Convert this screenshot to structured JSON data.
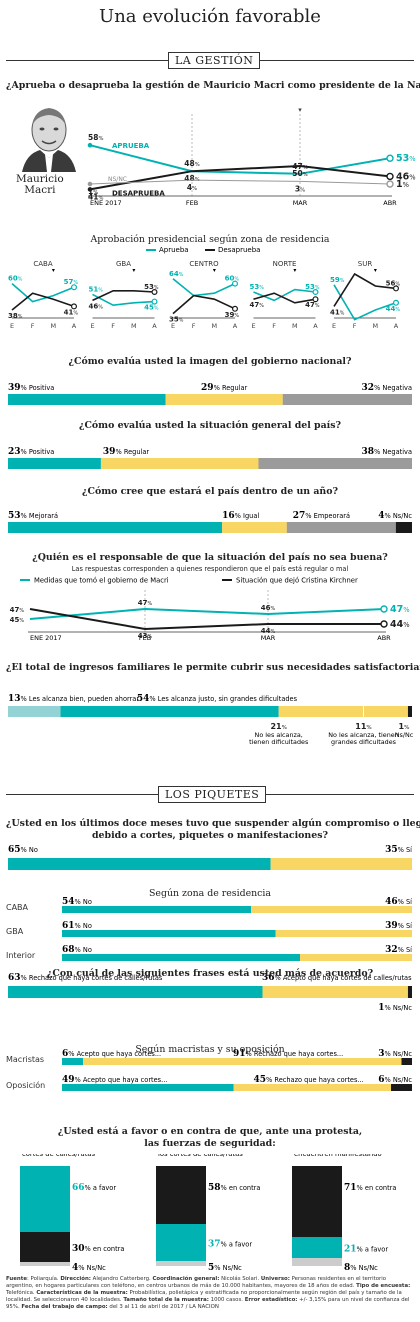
{
  "colors": {
    "teal": "#00B2B2",
    "black": "#1a1a1a",
    "yellow": "#F7D663",
    "gray": "#9b9b9b",
    "light": "#93D3D6"
  },
  "title": "Una evolución favorable",
  "sec_gestion": "LA GESTIÓN",
  "q_aprueba": "¿Aprueba o desaprueba la gestión de Mauricio Macri como presidente de la Nación?",
  "person_name": "Mauricio\nMacri",
  "chart_data": [
    {
      "type": "line",
      "id": "aprobacion",
      "x": [
        "ENE 2017",
        "FEB",
        "MAR",
        "ABR"
      ],
      "series": [
        {
          "name": "APRUEBA",
          "values": [
            58,
            48,
            47,
            53
          ]
        },
        {
          "name": "DESAPRUEBA",
          "values": [
            41,
            48,
            50,
            46
          ]
        },
        {
          "name": "NS/NC",
          "values": [
            1,
            4,
            3,
            1
          ]
        }
      ]
    },
    {
      "type": "line",
      "id": "zonas",
      "title": "Aprobación presidencial según zona de residencia",
      "x": [
        "E",
        "F",
        "M",
        "A"
      ],
      "legend": [
        "Aprueba",
        "Desaprueba"
      ],
      "panels": [
        {
          "name": "CABA",
          "aprueba": [
            60,
            45,
            50,
            57
          ],
          "desaprueba": [
            38,
            52,
            47,
            41
          ]
        },
        {
          "name": "GBA",
          "aprueba": [
            51,
            42,
            44,
            45
          ],
          "desaprueba": [
            46,
            54,
            54,
            53
          ]
        },
        {
          "name": "CENTRO",
          "aprueba": [
            64,
            50,
            52,
            60
          ],
          "desaprueba": [
            35,
            50,
            47,
            39
          ]
        },
        {
          "name": "NORTE",
          "aprueba": [
            53,
            46,
            55,
            53
          ],
          "desaprueba": [
            47,
            52,
            44,
            47
          ]
        },
        {
          "name": "SUR",
          "aprueba": [
            59,
            30,
            38,
            44
          ],
          "desaprueba": [
            41,
            68,
            58,
            56
          ]
        }
      ]
    },
    {
      "type": "bar",
      "id": "imagen",
      "title": "¿Cómo evalúa usted la imagen del gobierno nacional?",
      "categories": [
        "Positiva",
        "Regular",
        "Negativa"
      ],
      "values": [
        39,
        29,
        32
      ]
    },
    {
      "type": "bar",
      "id": "situacion",
      "title": "¿Cómo evalúa usted la situación general del país?",
      "categories": [
        "Positiva",
        "Regular",
        "Negativa"
      ],
      "values": [
        23,
        39,
        38
      ]
    },
    {
      "type": "bar",
      "id": "futuro",
      "title": "¿Cómo cree que estará el país dentro de un año?",
      "categories": [
        "Mejorará",
        "Igual",
        "Empeorará",
        "Ns/Nc"
      ],
      "values": [
        53,
        16,
        27,
        4
      ]
    },
    {
      "type": "line",
      "id": "responsable",
      "title": "¿Quién es el responsable de que la situación del país no sea buena?",
      "subtitle": "Las respuestas corresponden a quienes respondieron que el país está regular o mal",
      "x": [
        "ENE 2017",
        "FEB",
        "MAR",
        "ABR"
      ],
      "series": [
        {
          "name": "Medidas que tomó el gobierno de Macri",
          "values": [
            45,
            47,
            46,
            47
          ]
        },
        {
          "name": "Situación que dejó Cristina Kirchner",
          "values": [
            47,
            43,
            44,
            44
          ]
        }
      ]
    },
    {
      "type": "bar",
      "id": "ingresos",
      "title": "¿El total de ingresos familiares le permite cubrir sus necesidades satisfactoriamente?",
      "categories": [
        "Les alcanza bien, pueden ahorrar",
        "Les alcanza justo, sin grandes dificultades",
        "No les alcanza, tienen dificultades",
        "No les alcanza, tienen grandes dificultades",
        "Ns/Nc"
      ],
      "values": [
        13,
        54,
        21,
        11,
        1
      ]
    },
    {
      "type": "bar",
      "id": "compromiso",
      "title": "¿Usted en los últimos doce meses tuvo que suspender algún compromiso o llegar tarde\ndebido a cortes, piquetes o manifestaciones?",
      "categories": [
        "No",
        "Sí"
      ],
      "values": [
        65,
        35
      ]
    },
    {
      "type": "bar",
      "id": "zona_compromiso",
      "title": "Según zona de residencia",
      "rows": [
        {
          "name": "CABA",
          "no": 54,
          "si": 46
        },
        {
          "name": "GBA",
          "no": 61,
          "si": 39
        },
        {
          "name": "Interior",
          "no": 68,
          "si": 32
        }
      ]
    },
    {
      "type": "bar",
      "id": "frases",
      "title": "¿Con cuál de las siguientes frases está usted más de acuerdo?",
      "categories": [
        "Rechazo que haya cortes de calles/rutas",
        "Acepto que haya cortes de calles/rutas",
        "Ns/Nc"
      ],
      "values": [
        63,
        36,
        1
      ]
    },
    {
      "type": "bar",
      "id": "macristas",
      "title": "Según macristas y su oposición",
      "rows": [
        {
          "name": "Macristas",
          "acepto": 6,
          "rechazo": 91,
          "nsnc": 3
        },
        {
          "name": "Oposición",
          "acepto": 49,
          "rechazo": 45,
          "nsnc": 6
        }
      ]
    },
    {
      "type": "bar",
      "id": "seguridad",
      "title": "¿Usted está a favor o en contra de que, ante una protesta,\nlas fuerzas de seguridad:",
      "panels": [
        {
          "num": "1",
          "text": "Liberen el tránsito\ncuando se produzcan\ncortes de calles/rutas",
          "favor": 66,
          "contra": 30,
          "nsnc": 4
        },
        {
          "num": "2",
          "text": "Repriman a los manifestan-\ntes que no acepten levantar\nlos cortes de calles/rutas",
          "favor": 37,
          "contra": 58,
          "nsnc": 5
        },
        {
          "num": "3",
          "text": "Repriman a pesar de haber\nniños y mujeres que se\nencuentren manifestando",
          "favor": 21,
          "contra": 71,
          "nsnc": 8
        }
      ]
    }
  ],
  "labels": {
    "nsnc": "NS/NC",
    "ns_nc": "Ns/Nc",
    "pct": "%",
    "a_favor": "a favor",
    "en_contra": "en contra",
    "acepto_short": "Acepto que haya cortes...",
    "rechazo_short": "Rechazo que haya cortes...",
    "no": "No",
    "si": "Sí"
  },
  "sec_piquetes": "LOS PIQUETES",
  "footer": [
    {
      "k": "Fuente",
      "v": ": Poliarquía. "
    },
    {
      "k": "Dirección:",
      "v": " Alejandro Catterberg. "
    },
    {
      "k": "Coordinación general:",
      "v": " Nicolás Solari. "
    },
    {
      "k": "Universo:",
      "v": " Personas residentes en el territorio argentino, en hogares particulares con teléfono, en centros urbanos de más de 10.000 habitantes, mayores de 18 años de edad. "
    },
    {
      "k": "Tipo de encuesta:",
      "v": " Telefónica. "
    },
    {
      "k": "Características de la muestra:",
      "v": " Probabilística, polietápica y estratificada no proporcionalmente según región del país y tamaño de la localidad. Se seleccionaron 40 localidades. "
    },
    {
      "k": "Tamaño total de la muestra:",
      "v": " 1000 casos. "
    },
    {
      "k": "Error estadístico:",
      "v": " +/- 3,15% para un nivel de confianza del 95%. "
    },
    {
      "k": "Fecha del trabajo de campo:",
      "v": " del 3 al 11 de abril de 2017 / LA NACION"
    }
  ]
}
